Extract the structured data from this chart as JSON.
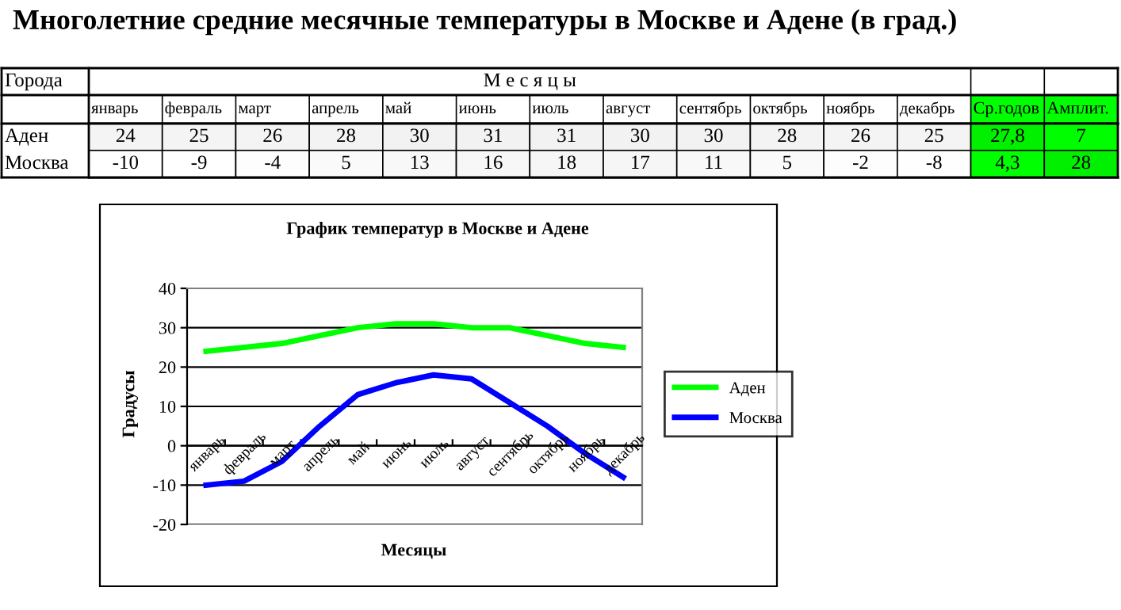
{
  "chart_data": [
    {
      "type": "heatmap",
      "title": "Многолетние средние месячные температуры в Москве и Адене (в град.)",
      "xlabel": "М е с я ц ы",
      "ylabel": "Города",
      "categories": [
        "январь",
        "февраль",
        "март",
        "апрель",
        "май",
        "июнь",
        "июль",
        "август",
        "сентябрь",
        "октябрь",
        "ноябрь",
        "декабрь",
        "Ср.годов",
        "Амплит."
      ],
      "y_categories": [
        "Аден",
        "Москва"
      ],
      "cells": [
        [
          24,
          25,
          26,
          28,
          30,
          31,
          31,
          30,
          30,
          28,
          26,
          25,
          27.8,
          7
        ],
        [
          -10,
          -9,
          -4,
          5,
          13,
          16,
          18,
          17,
          11,
          5,
          -2,
          -8,
          4.3,
          28
        ]
      ],
      "cell_labels": [
        [
          "24",
          "25",
          "26",
          "28",
          "30",
          "31",
          "31",
          "30",
          "30",
          "28",
          "26",
          "25",
          "27,8",
          "7"
        ],
        [
          "-10",
          "-9",
          "-4",
          "5",
          "13",
          "16",
          "18",
          "17",
          "11",
          "5",
          "-2",
          "-8",
          "4,3",
          "28"
        ]
      ]
    },
    {
      "type": "line",
      "title": "График температур в Москве и Адене",
      "xlabel": "Месяцы",
      "ylabel": "Градусы",
      "categories": [
        "январь",
        "февраль",
        "март",
        "апрель",
        "май",
        "июнь",
        "июль",
        "август",
        "сентябрь",
        "октябрь",
        "ноябрь",
        "декабрь"
      ],
      "series": [
        {
          "name": "Аден",
          "color": "#00ff00",
          "values": [
            24,
            25,
            26,
            28,
            30,
            31,
            31,
            30,
            30,
            28,
            26,
            25
          ]
        },
        {
          "name": "Москва",
          "color": "#0000ff",
          "values": [
            -10,
            -9,
            -4,
            5,
            13,
            16,
            18,
            17,
            11,
            5,
            -2,
            -8
          ]
        }
      ],
      "ylim": [
        -20,
        40
      ],
      "yticks": [
        -20,
        -10,
        0,
        10,
        20,
        30,
        40
      ],
      "grid": "y",
      "legend": "right",
      "marker": "none",
      "line_style": "solid"
    }
  ]
}
